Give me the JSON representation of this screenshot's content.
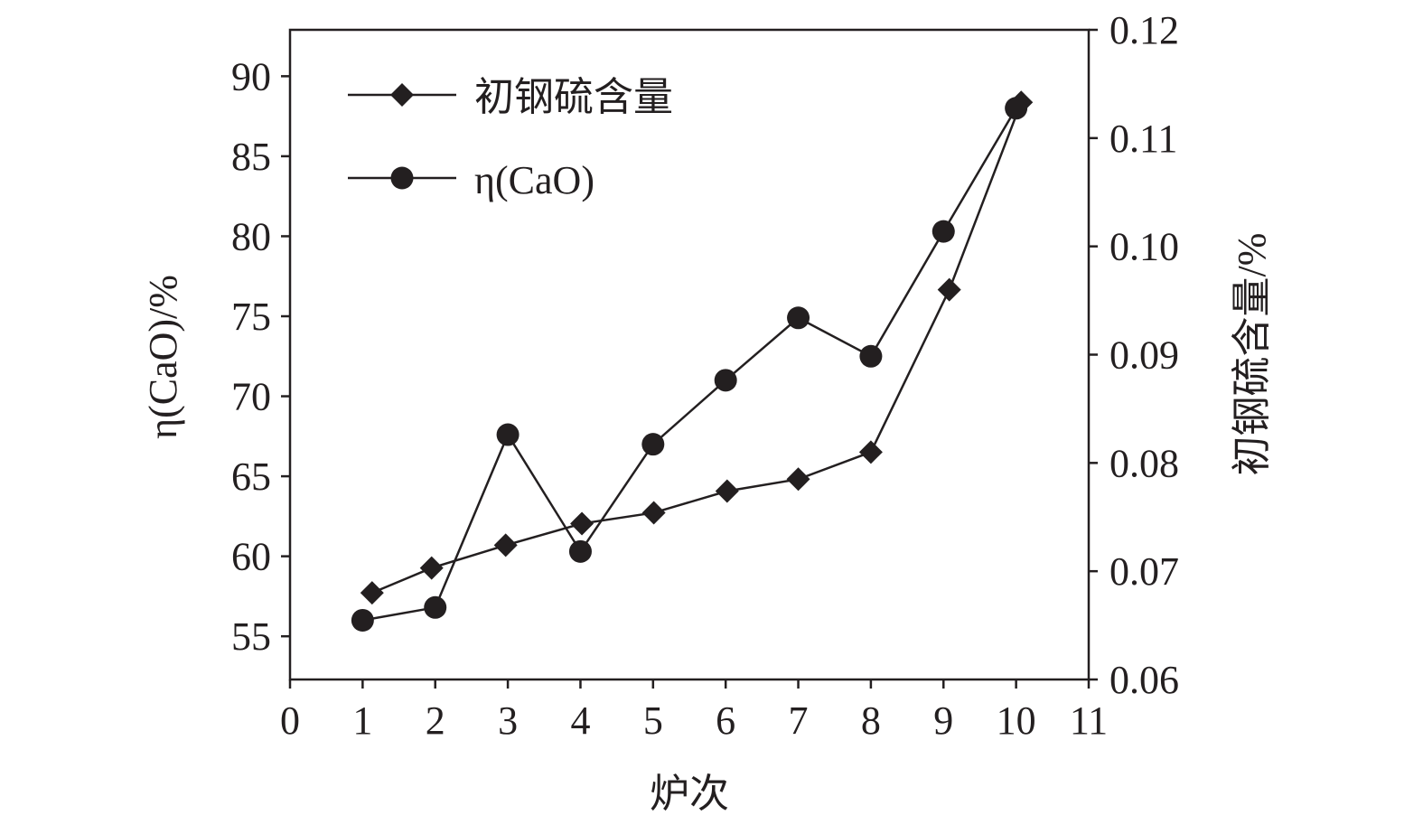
{
  "chart_data": {
    "type": "line",
    "xlabel": "炉次",
    "ylabel_left": "η(CaO)/%",
    "ylabel_right": "初钢硫含量/%",
    "xlim": [
      0,
      11
    ],
    "ylim_left": [
      52.3,
      92.9
    ],
    "ylim_right": [
      0.06,
      0.12
    ],
    "x_ticks": [
      "0",
      "1",
      "2",
      "3",
      "4",
      "5",
      "6",
      "7",
      "8",
      "9",
      "10",
      "11"
    ],
    "y_left_ticks": [
      "55",
      "60",
      "65",
      "70",
      "75",
      "80",
      "85",
      "90"
    ],
    "y_right_ticks": [
      "0.06",
      "0.07",
      "0.08",
      "0.09",
      "0.10",
      "0.11",
      "0.12"
    ],
    "grid": false,
    "legend_position": "top-left",
    "series": [
      {
        "name": "初钢硫含量",
        "axis": "right",
        "marker": "diamond",
        "x": [
          1.13,
          1.95,
          2.97,
          4.02,
          5.01,
          6.02,
          7.0,
          8.0,
          9.08,
          10.07
        ],
        "values": [
          0.068,
          0.0703,
          0.0724,
          0.0744,
          0.0754,
          0.0774,
          0.0785,
          0.081,
          0.096,
          0.1133
        ]
      },
      {
        "name": "η(CaO)",
        "axis": "left",
        "marker": "circle",
        "x": [
          1,
          2,
          3,
          4,
          5,
          6,
          7,
          8,
          9,
          10
        ],
        "values": [
          56.0,
          56.8,
          67.6,
          60.3,
          67.0,
          71.0,
          74.9,
          72.5,
          80.3,
          88.0
        ]
      }
    ],
    "color": "#231f20"
  }
}
